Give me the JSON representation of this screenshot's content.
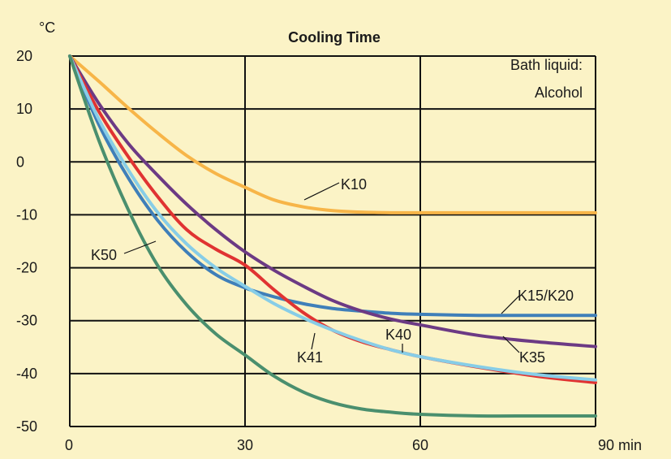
{
  "chart_data": {
    "type": "line",
    "title": "Cooling Time",
    "ylabel": "°C",
    "xlabel": "",
    "x_unit_label": "90 min",
    "xlim": [
      0,
      90
    ],
    "ylim": [
      -50,
      20
    ],
    "x_ticks": [
      "0",
      "30",
      "60",
      "90 min"
    ],
    "y_ticks": [
      "20",
      "10",
      "0",
      "-10",
      "-20",
      "-30",
      "-40",
      "-50"
    ],
    "grid": true,
    "annotation": [
      "Bath liquid:",
      "Alcohol"
    ],
    "series": [
      {
        "name": "K10",
        "color": "#f7b548",
        "x": [
          0,
          5,
          10,
          15,
          20,
          25,
          30,
          35,
          40,
          45,
          50,
          55,
          60,
          70,
          80,
          90
        ],
        "y": [
          20,
          15.2,
          10.2,
          5.5,
          1.2,
          -2.2,
          -4.8,
          -7.2,
          -8.5,
          -9.2,
          -9.5,
          -9.6,
          -9.6,
          -9.6,
          -9.6,
          -9.6
        ]
      },
      {
        "name": "K15/K20",
        "color": "#3f7fb9",
        "x": [
          0,
          5,
          10,
          15,
          20,
          25,
          30,
          35,
          40,
          45,
          50,
          55,
          60,
          70,
          80,
          90
        ],
        "y": [
          20,
          7,
          -3,
          -11,
          -17,
          -21.3,
          -23.8,
          -25.5,
          -26.8,
          -27.7,
          -28.2,
          -28.6,
          -28.8,
          -29,
          -29,
          -29
        ]
      },
      {
        "name": "K35",
        "color": "#6c3a84",
        "x": [
          0,
          5,
          10,
          15,
          20,
          25,
          30,
          35,
          40,
          45,
          50,
          55,
          60,
          70,
          80,
          90
        ],
        "y": [
          20,
          11,
          3.5,
          -2.5,
          -8,
          -12.8,
          -17,
          -20.5,
          -23.5,
          -26.2,
          -28.2,
          -29.7,
          -30.8,
          -32.8,
          -34,
          -34.9
        ]
      },
      {
        "name": "K40",
        "color": "#e03332",
        "x": [
          0,
          5,
          10,
          15,
          20,
          25,
          30,
          35,
          40,
          45,
          50,
          55,
          60,
          70,
          80,
          90
        ],
        "y": [
          20,
          9.5,
          1,
          -6.5,
          -12.8,
          -16.5,
          -19.5,
          -24.2,
          -28.5,
          -31.8,
          -34,
          -35.5,
          -36.8,
          -38.8,
          -40.5,
          -41.7
        ]
      },
      {
        "name": "K41",
        "color": "#87cde7",
        "x": [
          0,
          5,
          10,
          15,
          20,
          25,
          30,
          35,
          40,
          45,
          50,
          55,
          60,
          70,
          80,
          90
        ],
        "y": [
          20,
          8,
          -1.5,
          -9.5,
          -15.5,
          -20,
          -23.5,
          -26.8,
          -29.5,
          -31.8,
          -33.8,
          -35.5,
          -36.8,
          -38.7,
          -40.2,
          -41.2
        ]
      },
      {
        "name": "K50",
        "color": "#4a8f6e",
        "x": [
          0,
          5,
          10,
          15,
          20,
          25,
          30,
          35,
          40,
          45,
          50,
          55,
          60,
          70,
          80,
          90
        ],
        "y": [
          20,
          4,
          -9,
          -19.5,
          -27,
          -32.5,
          -36.5,
          -40.5,
          -43.5,
          -45.5,
          -46.7,
          -47.3,
          -47.7,
          -48,
          -48,
          -48
        ]
      }
    ],
    "curve_labels": [
      {
        "series": "K10",
        "text": "K10"
      },
      {
        "series": "K15/K20",
        "text": "K15/K20"
      },
      {
        "series": "K35",
        "text": "K35"
      },
      {
        "series": "K40",
        "text": "K40"
      },
      {
        "series": "K41",
        "text": "K41"
      },
      {
        "series": "K50",
        "text": "K50"
      }
    ]
  }
}
